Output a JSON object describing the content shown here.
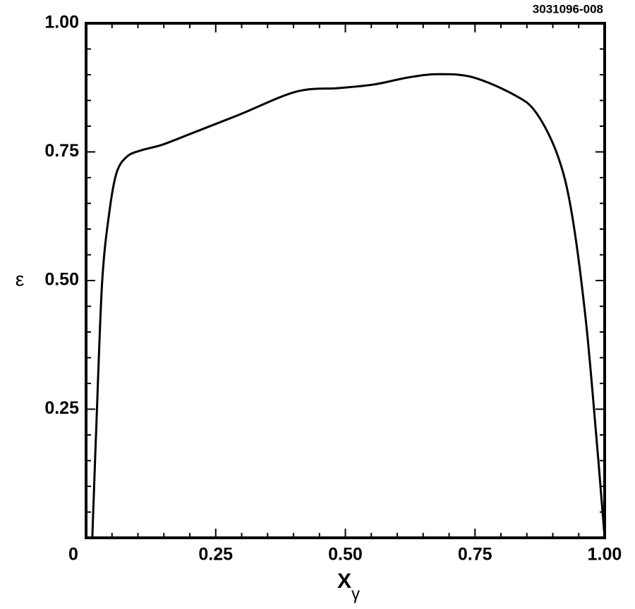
{
  "chart_data": {
    "type": "line",
    "id_label": "3031096-008",
    "xlabel": "X",
    "xlabel_subscript": "γ",
    "ylabel": "ε",
    "xlim": [
      0,
      1
    ],
    "ylim": [
      0,
      1
    ],
    "xticks": [
      0,
      0.25,
      {
        "value": 0.5,
        "label": "0.50"
      },
      0.75,
      {
        "value": 1,
        "label": "1.00"
      }
    ],
    "yticks": [
      0.25,
      {
        "value": 0.5,
        "label": "0.50"
      },
      0.75,
      {
        "value": 1,
        "label": "1.00"
      }
    ],
    "xticks_minor": [
      0.05,
      0.1,
      0.15,
      0.2,
      0.3,
      0.35,
      0.4,
      0.45,
      0.55,
      0.6,
      0.65,
      0.7,
      0.8,
      0.85,
      0.9,
      0.95
    ],
    "yticks_minor": [
      0.05,
      0.1,
      0.15,
      0.2,
      0.3,
      0.35,
      0.4,
      0.45,
      0.55,
      0.6,
      0.65,
      0.7,
      0.8,
      0.85,
      0.9,
      0.95
    ],
    "color": "#000000",
    "x": [
      0.012,
      0.02,
      0.031,
      0.045,
      0.059,
      0.079,
      0.106,
      0.147,
      0.201,
      0.297,
      0.405,
      0.487,
      0.555,
      0.623,
      0.678,
      0.746,
      0.827,
      0.868,
      0.909,
      0.936,
      0.963,
      0.984,
      1.0
    ],
    "values": [
      0,
      0.223,
      0.497,
      0.634,
      0.71,
      0.741,
      0.753,
      0.764,
      0.785,
      0.823,
      0.867,
      0.874,
      0.881,
      0.895,
      0.901,
      0.895,
      0.86,
      0.826,
      0.744,
      0.634,
      0.429,
      0.196,
      0
    ]
  }
}
